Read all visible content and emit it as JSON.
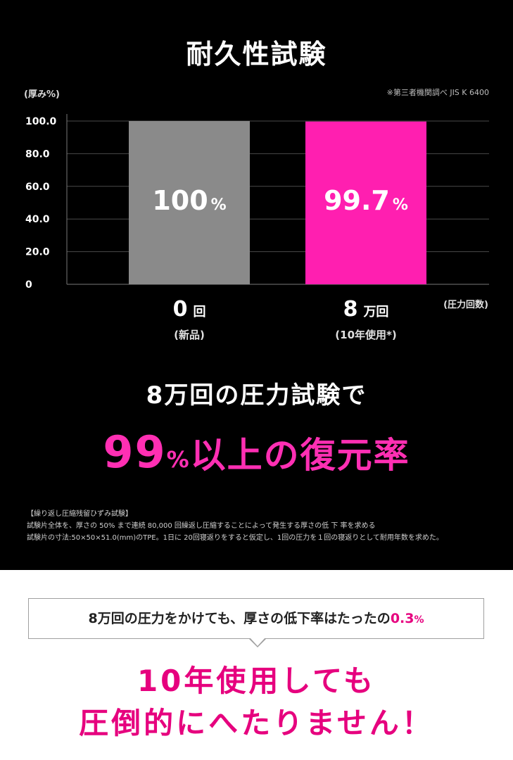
{
  "title": "耐久性試験",
  "source_note": "※第三者機関調べ JIS K 6400",
  "chart_data": {
    "type": "bar",
    "ylabel": "(厚み%)",
    "xlabel": "(圧力回数)",
    "ylim": [
      0,
      100
    ],
    "yticks": [
      "0",
      "20.0",
      "40.0",
      "60.0",
      "80.0",
      "100.0"
    ],
    "yticks_values": [
      0,
      20,
      40,
      60,
      80,
      100
    ],
    "categories": [
      {
        "main_num": "0",
        "main_unit": "回",
        "sub": "(新品)"
      },
      {
        "main_num": "8",
        "main_unit": "万回",
        "sub": "(10年使用*)"
      }
    ],
    "values": [
      100,
      99.7
    ],
    "value_labels": [
      {
        "num": "100",
        "unit": "%"
      },
      {
        "num": "99.7",
        "unit": "%"
      }
    ],
    "colors": [
      "#8a8a8a",
      "#ff1fb0"
    ],
    "grid": true
  },
  "headline": {
    "line1": "8万回の圧力試験で",
    "line2_num": "99",
    "line2_pct": "%",
    "line2_rest": "以上の復元率"
  },
  "notes": {
    "heading": "【繰り返し圧縮残留ひずみ試験】",
    "line1": "試験片全体を、厚さの 50% まで連続 80,000 回繰返し圧縮することによって発生する厚さの低 下 率を求める",
    "line2": "試験片の寸法:50×50×51.0(mm)のTPE。1日に 20回寝返りをすると仮定し、1回の圧力を１回の寝返りとして耐用年数を求めた。"
  },
  "bubble": {
    "text": "8万回の圧力をかけても、厚さの低下率はたったの",
    "value": "0.3",
    "unit": "%"
  },
  "closing": {
    "line1": "10年使用しても",
    "line2": "圧倒的にへたりません！"
  }
}
